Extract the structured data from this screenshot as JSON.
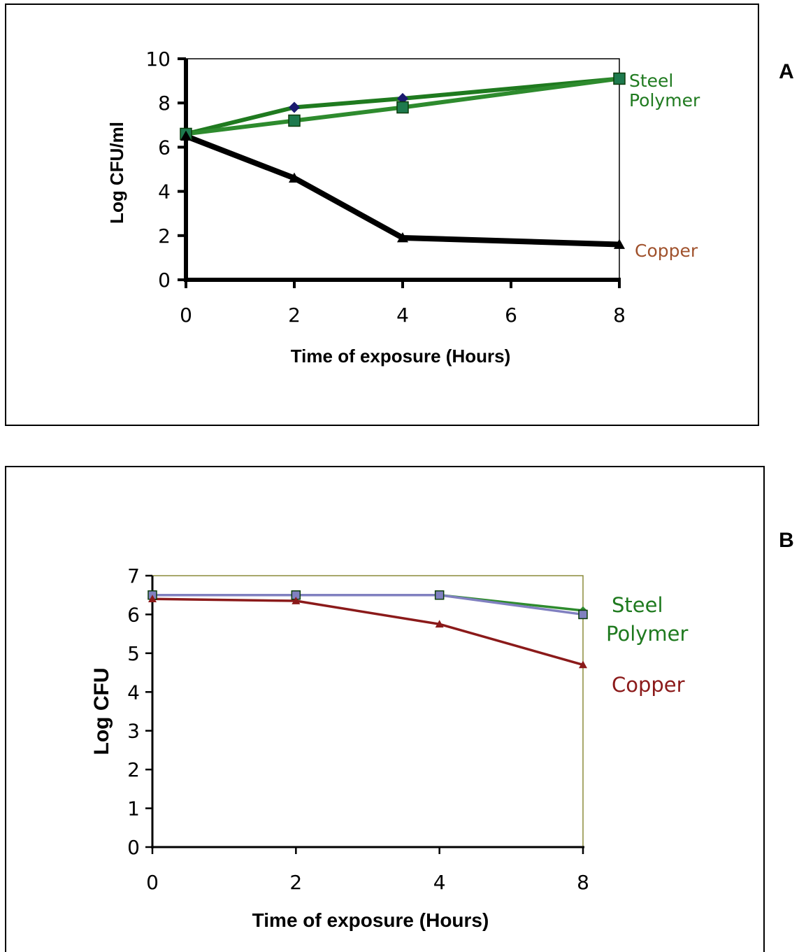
{
  "chart_data": [
    {
      "panel": "A",
      "type": "line",
      "xlabel": "Time of exposure (Hours)",
      "ylabel": "Log CFU/ml",
      "x": [
        0,
        2,
        4,
        8
      ],
      "xticks": [
        0,
        2,
        4,
        6,
        8
      ],
      "xlim": [
        0,
        8
      ],
      "yticks": [
        0,
        2,
        4,
        6,
        8,
        10
      ],
      "ylim": [
        0,
        10
      ],
      "series": [
        {
          "name": "Steel",
          "values": [
            6.6,
            7.8,
            8.2,
            9.1
          ],
          "color": "#1f7a1f",
          "marker_color": "#1a1a6e",
          "marker": "diamond"
        },
        {
          "name": "Polymer",
          "values": [
            6.6,
            7.2,
            7.8,
            9.1
          ],
          "color": "#2e8b2e",
          "marker_color": "#1e7a4e",
          "marker": "square"
        },
        {
          "name": "Copper",
          "values": [
            6.5,
            4.6,
            1.9,
            1.6
          ],
          "color": "#000000",
          "marker_color": "#000000",
          "marker": "triangle"
        }
      ],
      "label_colors": {
        "Steel": "#1f7a1f",
        "Polymer": "#1f7a1f",
        "Copper": "#a0522d"
      }
    },
    {
      "panel": "B",
      "type": "line",
      "xlabel": "Time of exposure (Hours)",
      "ylabel": "Log CFU",
      "x": [
        0,
        2,
        4,
        8
      ],
      "xticks": [
        0,
        2,
        4,
        8
      ],
      "yticks": [
        0,
        1,
        2,
        3,
        4,
        5,
        6,
        7
      ],
      "ylim": [
        0,
        7
      ],
      "series": [
        {
          "name": "Steel",
          "values": [
            6.5,
            6.5,
            6.5,
            6.1
          ],
          "color": "#2e8b2e",
          "marker_color": "#2e8b2e",
          "marker": "diamond"
        },
        {
          "name": "Polymer",
          "values": [
            6.5,
            6.5,
            6.5,
            6.0
          ],
          "color": "#8080c0",
          "marker_color": "#8080c0",
          "marker": "square"
        },
        {
          "name": "Copper",
          "values": [
            6.4,
            6.35,
            5.75,
            4.7
          ],
          "color": "#8b1a1a",
          "marker_color": "#8b1a1a",
          "marker": "triangle"
        }
      ],
      "label_colors": {
        "Steel": "#1f7a1f",
        "Polymer": "#1f7a1f",
        "Copper": "#8b1a1a"
      }
    }
  ]
}
